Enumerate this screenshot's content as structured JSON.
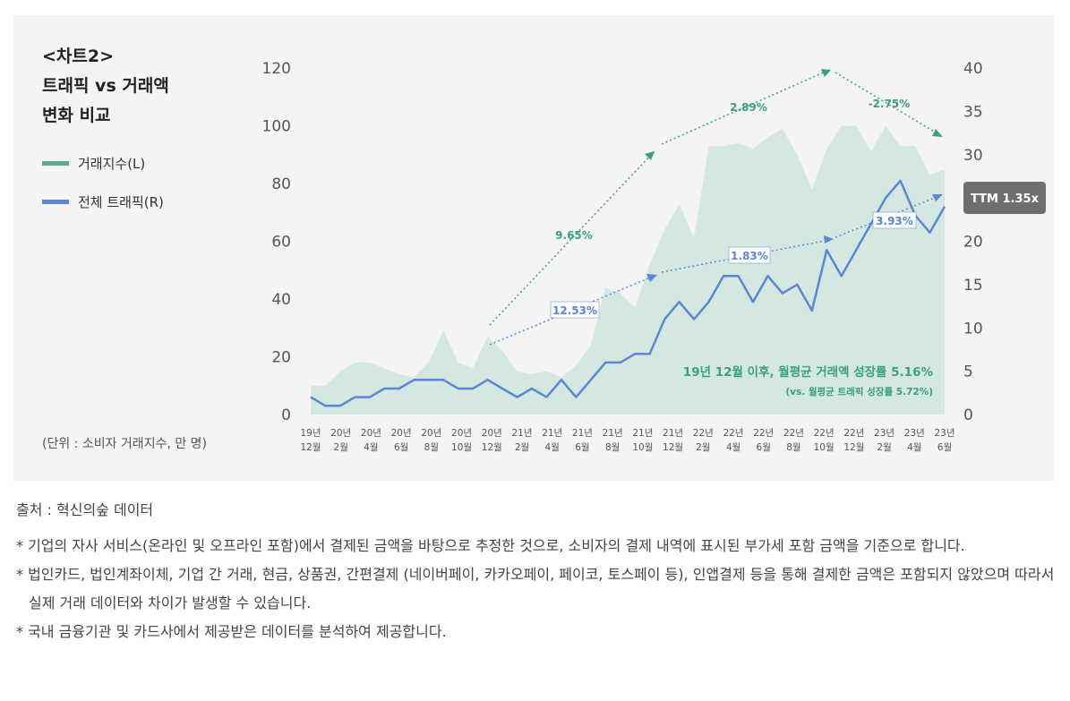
{
  "panel": {
    "title_line1": "<차트2>",
    "title_line2": "트래픽 vs 거래액",
    "title_line3": "변화 비교",
    "unit": "(단위 : 소비자 거래지수, 만 명)"
  },
  "colors": {
    "area": "#d4e8e1",
    "area_legend": "#5aab8c",
    "traffic": "#5b86d6",
    "green_text": "#3aa178",
    "blue_text": "#5b86d6",
    "badge": "#6e6e6e"
  },
  "chart_data": {
    "type": "area+line",
    "title": "트래픽 vs 거래액 변화 비교",
    "x_tick_labels": [
      [
        "19년",
        "12월"
      ],
      [
        "20년",
        "2월"
      ],
      [
        "20년",
        "4월"
      ],
      [
        "20년",
        "6월"
      ],
      [
        "20년",
        "8월"
      ],
      [
        "20년",
        "10월"
      ],
      [
        "20년",
        "12월"
      ],
      [
        "21년",
        "2월"
      ],
      [
        "21년",
        "4월"
      ],
      [
        "21년",
        "6월"
      ],
      [
        "21년",
        "8월"
      ],
      [
        "21년",
        "10월"
      ],
      [
        "21년",
        "12월"
      ],
      [
        "22년",
        "2월"
      ],
      [
        "22년",
        "4월"
      ],
      [
        "22년",
        "6월"
      ],
      [
        "22년",
        "8월"
      ],
      [
        "22년",
        "10월"
      ],
      [
        "22년",
        "12월"
      ],
      [
        "23년",
        "2월"
      ],
      [
        "23년",
        "4월"
      ],
      [
        "23년",
        "6월"
      ]
    ],
    "left_axis": {
      "ylim": [
        0,
        120
      ],
      "ticks": [
        "0",
        "20",
        "40",
        "60",
        "80",
        "100",
        "120"
      ]
    },
    "right_axis": {
      "ylim": [
        0,
        40
      ],
      "ticks": [
        "0",
        "5",
        "10",
        "15",
        "20",
        "25",
        "30",
        "35",
        "40"
      ]
    },
    "series": [
      {
        "name": "거래지수(L)",
        "axis": "left",
        "kind": "area",
        "values": [
          10,
          10,
          15,
          18,
          18,
          16,
          14,
          13,
          18,
          29,
          18,
          16,
          27,
          22,
          15,
          14,
          15,
          13,
          17,
          24,
          44,
          42,
          37,
          52,
          64,
          73,
          61,
          93,
          93,
          94,
          92,
          96,
          99,
          90,
          78,
          92,
          100,
          100,
          91,
          100,
          93,
          93,
          83,
          85
        ]
      },
      {
        "name": "전체 트래픽(R)",
        "axis": "right",
        "kind": "line",
        "values": [
          2,
          1,
          1,
          2,
          2,
          3,
          3,
          4,
          4,
          4,
          3,
          3,
          4,
          3,
          2,
          3,
          2,
          4,
          2,
          4,
          6,
          6,
          7,
          7,
          11,
          13,
          11,
          13,
          16,
          16,
          13,
          16,
          14,
          15,
          12,
          19,
          16,
          19,
          22,
          25,
          27,
          23,
          21,
          24
        ]
      }
    ],
    "legend": {
      "area": "거래지수(L)",
      "line": "전체 트래픽(R)"
    },
    "annotations": {
      "green_growth": [
        "9.65%",
        "2.89%",
        "-2.75%"
      ],
      "blue_growth": [
        "12.53%",
        "1.83%",
        "3.93%"
      ],
      "summary_main": "19년 12월 이후, 월평균 거래액 성장률 5.16%",
      "summary_sub": "(vs. 월평균 트래픽 성장률 5.72%)",
      "badge": "TTM 1.35x"
    }
  },
  "notes": {
    "source": "출처 : 혁신의숲 데이터",
    "items": [
      "* 기업의 자사 서비스(온라인 및 오프라인 포함)에서 결제된 금액을 바탕으로 추정한 것으로, 소비자의 결제 내역에 표시된 부가세 포함 금액을 기준으로 합니다.",
      "* 법인카드, 법인계좌이체, 기업 간 거래, 현금, 상품권, 간편결제 (네이버페이, 카카오페이, 페이코, 토스페이 등), 인앱결제 등을 통해 결제한 금액은 포함되지 않았으며 따라서 실제 거래 데이터와 차이가 발생할 수 있습니다.",
      "* 국내 금융기관 및 카드사에서 제공받은 데이터를 분석하여 제공합니다."
    ]
  }
}
